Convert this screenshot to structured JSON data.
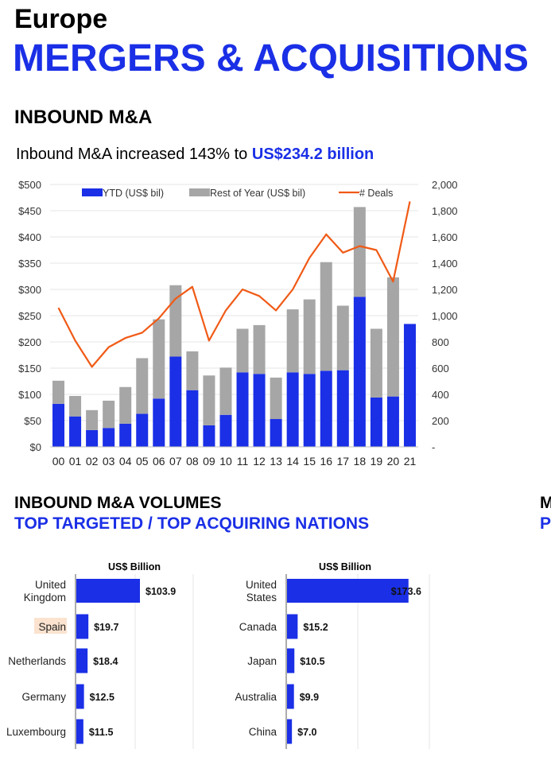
{
  "header": {
    "region": "Europe",
    "title": "MERGERS & ACQUISITIONS",
    "section1": "INBOUND M&A",
    "headline_prefix": "Inbound M&A increased 143% to ",
    "headline_value": "US$234.2 billion",
    "section2_line1": "INBOUND M&A VOLUMES",
    "section2_line2": "TOP TARGETED / TOP ACQUIRING NATIONS",
    "cut_line1": "M",
    "cut_line2": "P"
  },
  "colors": {
    "blue": "#1a2fe6",
    "gray": "#a6a6a6",
    "orange": "#f05a16",
    "grid": "#e6e6e6"
  },
  "chart_data": [
    {
      "type": "bar",
      "stacked": true,
      "categories": [
        "00",
        "01",
        "02",
        "03",
        "04",
        "05",
        "06",
        "07",
        "08",
        "09",
        "10",
        "11",
        "12",
        "13",
        "14",
        "15",
        "16",
        "17",
        "18",
        "19",
        "20",
        "21"
      ],
      "series": [
        {
          "name": "YTD (US$ bil)",
          "values": [
            82,
            58,
            32,
            36,
            44,
            63,
            92,
            172,
            108,
            41,
            61,
            142,
            139,
            53,
            142,
            139,
            145,
            146,
            286,
            94,
            96,
            234.2
          ]
        },
        {
          "name": "Rest of Year (US$ bil)",
          "values": [
            44,
            39,
            38,
            52,
            70,
            106,
            151,
            136,
            74,
            95,
            90,
            83,
            93,
            79,
            120,
            142,
            207,
            123,
            171,
            131,
            227,
            0
          ]
        },
        {
          "name": "# Deals",
          "axis": "right",
          "type": "line",
          "values": [
            1060,
            810,
            610,
            760,
            830,
            870,
            980,
            1130,
            1220,
            810,
            1040,
            1200,
            1150,
            1040,
            1200,
            1440,
            1620,
            1480,
            1530,
            1500,
            1260,
            1870
          ]
        }
      ],
      "y_tick_labels": [
        "$0",
        "$50",
        "$100",
        "$150",
        "$200",
        "$250",
        "$300",
        "$350",
        "$400",
        "$450",
        "$500"
      ],
      "y2_tick_labels": [
        "-",
        "200",
        "400",
        "600",
        "800",
        "1,000",
        "1,200",
        "1,400",
        "1,600",
        "1,800",
        "2,000"
      ],
      "ylim": [
        0,
        500
      ],
      "y2lim": [
        0,
        2000
      ],
      "legend": "top",
      "grid": true
    },
    {
      "type": "bar",
      "orientation": "horizontal",
      "title": "US$ Billion",
      "categories": [
        "United Kingdom",
        "Spain",
        "Netherlands",
        "Germany",
        "Luxembourg"
      ],
      "values": [
        103.9,
        19.7,
        18.4,
        12.5,
        11.5
      ],
      "value_labels": [
        "$103.9",
        "$19.7",
        "$18.4",
        "$12.5",
        "$11.5"
      ],
      "highlight": "Spain",
      "xlim": [
        0,
        200
      ]
    },
    {
      "type": "bar",
      "orientation": "horizontal",
      "title": "US$ Billion",
      "categories": [
        "United States",
        "Canada",
        "Japan",
        "Australia",
        "China"
      ],
      "values": [
        173.6,
        15.2,
        10.5,
        9.9,
        7.0
      ],
      "value_labels": [
        "$173.6",
        "$15.2",
        "$10.5",
        "$9.9",
        "$7.0"
      ],
      "xlim": [
        0,
        200
      ]
    }
  ]
}
